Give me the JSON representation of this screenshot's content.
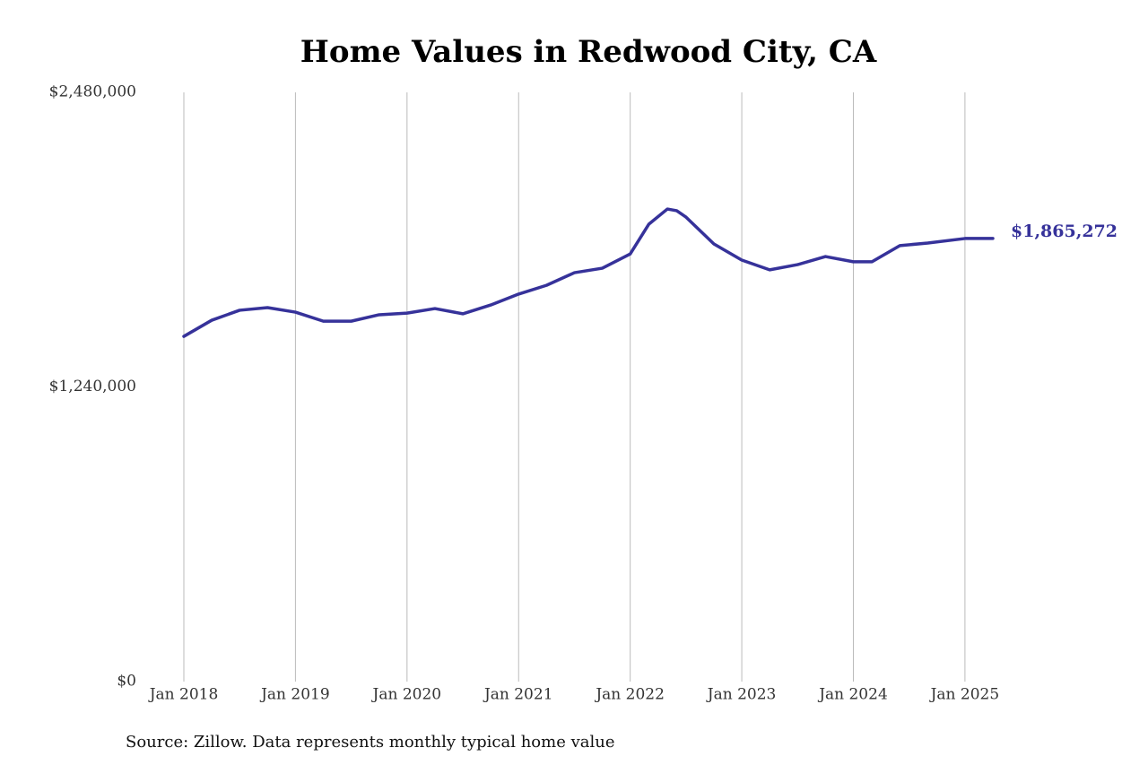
{
  "chart_data": {
    "type": "line",
    "title": "Home Values in Redwood City, CA",
    "source": "Source: Zillow. Data represents monthly typical home value",
    "x": [
      "2018-01",
      "2018-04",
      "2018-07",
      "2018-10",
      "2019-01",
      "2019-04",
      "2019-07",
      "2019-10",
      "2020-01",
      "2020-04",
      "2020-07",
      "2020-10",
      "2021-01",
      "2021-04",
      "2021-07",
      "2021-10",
      "2022-01",
      "2022-03",
      "2022-05",
      "2022-06",
      "2022-07",
      "2022-10",
      "2023-01",
      "2023-04",
      "2023-07",
      "2023-10",
      "2024-01",
      "2024-03",
      "2024-06",
      "2024-09",
      "2025-01",
      "2025-04"
    ],
    "series": [
      {
        "name": "Typical home value",
        "color": "#36329a",
        "values": [
          1453000,
          1521000,
          1563000,
          1574000,
          1555000,
          1517000,
          1517000,
          1544000,
          1551000,
          1570000,
          1548000,
          1585000,
          1631000,
          1668000,
          1721000,
          1740000,
          1800000,
          1925000,
          1989000,
          1982000,
          1955000,
          1842000,
          1774000,
          1733000,
          1755000,
          1789000,
          1767000,
          1767000,
          1835000,
          1846000,
          1865000,
          1865272
        ],
        "value_labels": [
          null,
          null,
          null,
          null,
          null,
          null,
          null,
          null,
          null,
          null,
          null,
          null,
          null,
          null,
          null,
          null,
          null,
          null,
          null,
          null,
          null,
          null,
          null,
          null,
          null,
          null,
          null,
          null,
          null,
          null,
          null,
          "$1,865,272"
        ]
      }
    ],
    "xlim": [
      "2018-01",
      "2025-04"
    ],
    "xticks": [
      {
        "value": "2018-01",
        "label": "Jan 2018"
      },
      {
        "value": "2019-01",
        "label": "Jan 2019"
      },
      {
        "value": "2020-01",
        "label": "Jan 2020"
      },
      {
        "value": "2021-01",
        "label": "Jan 2021"
      },
      {
        "value": "2022-01",
        "label": "Jan 2022"
      },
      {
        "value": "2023-01",
        "label": "Jan 2023"
      },
      {
        "value": "2024-01",
        "label": "Jan 2024"
      },
      {
        "value": "2025-01",
        "label": "Jan 2025"
      }
    ],
    "ylim": [
      0,
      2480000
    ],
    "yticks": [
      {
        "value": 0,
        "label": "$0"
      },
      {
        "value": 1240000,
        "label": "$1,240,000"
      },
      {
        "value": 2480000,
        "label": "$2,480,000"
      }
    ],
    "grid": "x"
  }
}
